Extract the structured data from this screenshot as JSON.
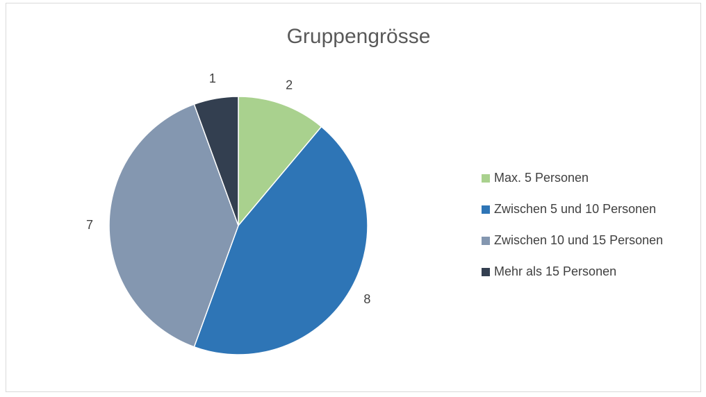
{
  "chart_data": {
    "type": "pie",
    "title": "Gruppengrösse",
    "categories": [
      "Max. 5 Personen",
      "Zwischen 5 und 10 Personen",
      "Zwischen 10 und 15 Personen",
      "Mehr als 15 Personen"
    ],
    "values": [
      2,
      8,
      7,
      1
    ],
    "colors": [
      "#a9d18e",
      "#2e75b6",
      "#8497b0",
      "#333f50"
    ],
    "legend": "right"
  }
}
